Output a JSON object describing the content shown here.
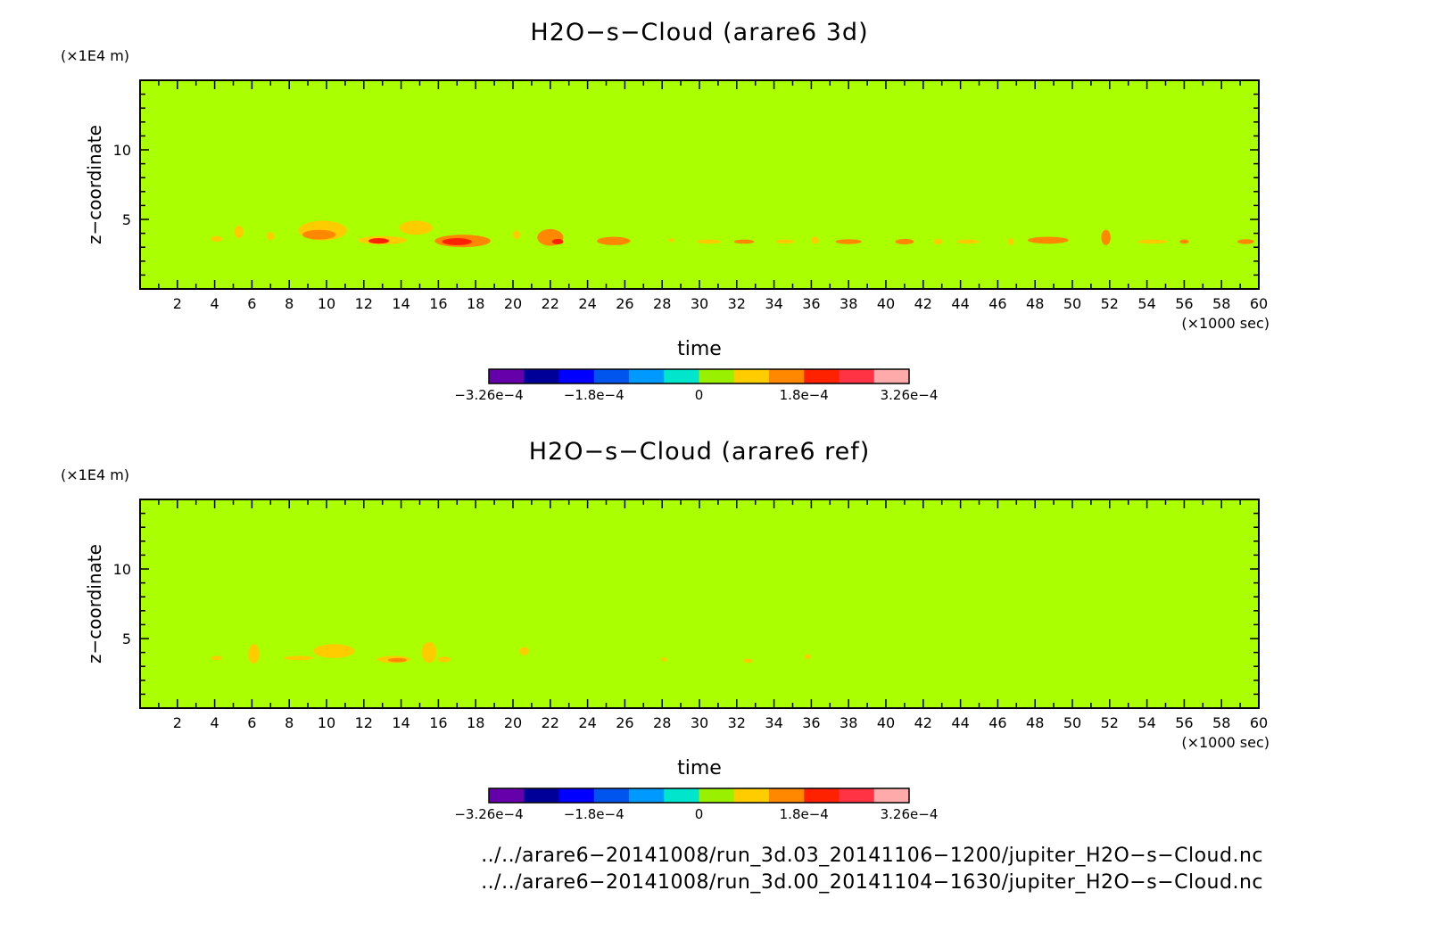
{
  "chart_data": [
    {
      "type": "heatmap",
      "title": "H2O−s−Cloud (arare6 3d)",
      "xlabel": "time",
      "ylabel": "z−coordinate",
      "x_unit": "(×1000 sec)",
      "y_unit": "(×1E4 m)",
      "xlim": [
        0,
        60
      ],
      "ylim": [
        0,
        15
      ],
      "x_ticks": [
        2,
        4,
        6,
        8,
        10,
        12,
        14,
        16,
        18,
        20,
        22,
        24,
        26,
        28,
        30,
        32,
        34,
        36,
        38,
        40,
        42,
        44,
        46,
        48,
        50,
        52,
        54,
        56,
        58,
        60
      ],
      "y_ticks": [
        5,
        10
      ],
      "background_level": "0",
      "features": [
        {
          "x": 4.1,
          "z": 3.6,
          "w": 0.6,
          "h": 0.4,
          "level": "+1"
        },
        {
          "x": 5.3,
          "z": 4.1,
          "w": 0.5,
          "h": 0.9,
          "level": "+1"
        },
        {
          "x": 7.0,
          "z": 3.8,
          "w": 0.4,
          "h": 0.6,
          "level": "+1"
        },
        {
          "x": 9.8,
          "z": 4.2,
          "w": 2.6,
          "h": 1.4,
          "level": "+1"
        },
        {
          "x": 9.6,
          "z": 3.9,
          "w": 1.8,
          "h": 0.7,
          "level": "+2"
        },
        {
          "x": 13.0,
          "z": 3.5,
          "w": 2.6,
          "h": 0.6,
          "level": "+1"
        },
        {
          "x": 12.8,
          "z": 3.45,
          "w": 1.1,
          "h": 0.4,
          "level": "+3"
        },
        {
          "x": 14.8,
          "z": 4.4,
          "w": 1.8,
          "h": 1.0,
          "level": "+1"
        },
        {
          "x": 17.3,
          "z": 3.45,
          "w": 3.0,
          "h": 0.9,
          "level": "+2"
        },
        {
          "x": 17.0,
          "z": 3.4,
          "w": 1.6,
          "h": 0.5,
          "level": "+3"
        },
        {
          "x": 20.2,
          "z": 3.9,
          "w": 0.4,
          "h": 0.6,
          "level": "+1"
        },
        {
          "x": 22.0,
          "z": 3.7,
          "w": 1.4,
          "h": 1.2,
          "level": "+2"
        },
        {
          "x": 22.4,
          "z": 3.4,
          "w": 0.6,
          "h": 0.4,
          "level": "+3"
        },
        {
          "x": 25.4,
          "z": 3.45,
          "w": 1.8,
          "h": 0.6,
          "level": "+2"
        },
        {
          "x": 28.5,
          "z": 3.5,
          "w": 0.3,
          "h": 0.3,
          "level": "+1"
        },
        {
          "x": 30.5,
          "z": 3.4,
          "w": 1.3,
          "h": 0.3,
          "level": "+1"
        },
        {
          "x": 32.4,
          "z": 3.4,
          "w": 1.1,
          "h": 0.3,
          "level": "+2"
        },
        {
          "x": 34.6,
          "z": 3.4,
          "w": 1.0,
          "h": 0.3,
          "level": "+1"
        },
        {
          "x": 36.2,
          "z": 3.5,
          "w": 0.4,
          "h": 0.5,
          "level": "+1"
        },
        {
          "x": 38.0,
          "z": 3.4,
          "w": 1.4,
          "h": 0.35,
          "level": "+2"
        },
        {
          "x": 41.0,
          "z": 3.4,
          "w": 1.0,
          "h": 0.4,
          "level": "+2"
        },
        {
          "x": 42.8,
          "z": 3.4,
          "w": 0.5,
          "h": 0.4,
          "level": "+1"
        },
        {
          "x": 44.4,
          "z": 3.4,
          "w": 1.2,
          "h": 0.3,
          "level": "+1"
        },
        {
          "x": 46.7,
          "z": 3.4,
          "w": 0.3,
          "h": 0.5,
          "level": "+1"
        },
        {
          "x": 48.7,
          "z": 3.5,
          "w": 2.2,
          "h": 0.5,
          "level": "+2"
        },
        {
          "x": 51.8,
          "z": 3.7,
          "w": 0.5,
          "h": 1.1,
          "level": "+2"
        },
        {
          "x": 54.3,
          "z": 3.4,
          "w": 1.6,
          "h": 0.3,
          "level": "+1"
        },
        {
          "x": 56.0,
          "z": 3.4,
          "w": 0.5,
          "h": 0.3,
          "level": "+2"
        },
        {
          "x": 59.3,
          "z": 3.4,
          "w": 0.9,
          "h": 0.35,
          "level": "+2"
        }
      ],
      "colorbar": {
        "colors": [
          "#6600aa",
          "#000099",
          "#0000ff",
          "#0055ee",
          "#0099ff",
          "#00e5cc",
          "#99f000",
          "#ffcc00",
          "#ff8800",
          "#ff2200",
          "#ff3344",
          "#ffaaaa"
        ],
        "tick_labels": [
          "−3.26e−4",
          "−1.8e−4",
          "0",
          "1.8e−4",
          "3.26e−4"
        ]
      }
    },
    {
      "type": "heatmap",
      "title": "H2O−s−Cloud (arare6 ref)",
      "xlabel": "time",
      "ylabel": "z−coordinate",
      "x_unit": "(×1000 sec)",
      "y_unit": "(×1E4 m)",
      "xlim": [
        0,
        60
      ],
      "ylim": [
        0,
        15
      ],
      "x_ticks": [
        2,
        4,
        6,
        8,
        10,
        12,
        14,
        16,
        18,
        20,
        22,
        24,
        26,
        28,
        30,
        32,
        34,
        36,
        38,
        40,
        42,
        44,
        46,
        48,
        50,
        52,
        54,
        56,
        58,
        60
      ],
      "y_ticks": [
        5,
        10
      ],
      "background_level": "0",
      "features": [
        {
          "x": 4.1,
          "z": 3.6,
          "w": 0.6,
          "h": 0.3,
          "level": "+1"
        },
        {
          "x": 6.1,
          "z": 3.9,
          "w": 0.6,
          "h": 1.4,
          "level": "+1"
        },
        {
          "x": 8.5,
          "z": 3.6,
          "w": 1.6,
          "h": 0.3,
          "level": "+1"
        },
        {
          "x": 10.4,
          "z": 4.1,
          "w": 2.2,
          "h": 1.0,
          "level": "+1"
        },
        {
          "x": 13.6,
          "z": 3.5,
          "w": 1.8,
          "h": 0.5,
          "level": "+1"
        },
        {
          "x": 13.8,
          "z": 3.45,
          "w": 1.0,
          "h": 0.3,
          "level": "+2"
        },
        {
          "x": 15.5,
          "z": 4.0,
          "w": 0.8,
          "h": 1.5,
          "level": "+1"
        },
        {
          "x": 16.3,
          "z": 3.5,
          "w": 0.7,
          "h": 0.4,
          "level": "+1"
        },
        {
          "x": 20.6,
          "z": 4.1,
          "w": 0.5,
          "h": 0.6,
          "level": "+1"
        },
        {
          "x": 28.1,
          "z": 3.5,
          "w": 0.3,
          "h": 0.3,
          "level": "+1"
        },
        {
          "x": 32.6,
          "z": 3.4,
          "w": 0.5,
          "h": 0.3,
          "level": "+1"
        },
        {
          "x": 35.8,
          "z": 3.7,
          "w": 0.3,
          "h": 0.4,
          "level": "+1"
        }
      ],
      "colorbar": {
        "colors": [
          "#6600aa",
          "#000099",
          "#0000ff",
          "#0055ee",
          "#0099ff",
          "#00e5cc",
          "#99f000",
          "#ffcc00",
          "#ff8800",
          "#ff2200",
          "#ff3344",
          "#ffaaaa"
        ],
        "tick_labels": [
          "−3.26e−4",
          "−1.8e−4",
          "0",
          "1.8e−4",
          "3.26e−4"
        ]
      }
    }
  ],
  "colors": {
    "field_background": "#aaff00",
    "plus1": "#ffcc00",
    "plus2": "#ff8800",
    "plus3": "#ff2200"
  },
  "file_paths": [
    "../../arare6−20141008/run_3d.03_20141106−1200/jupiter_H2O−s−Cloud.nc",
    "../../arare6−20141008/run_3d.00_20141104−1630/jupiter_H2O−s−Cloud.nc"
  ]
}
